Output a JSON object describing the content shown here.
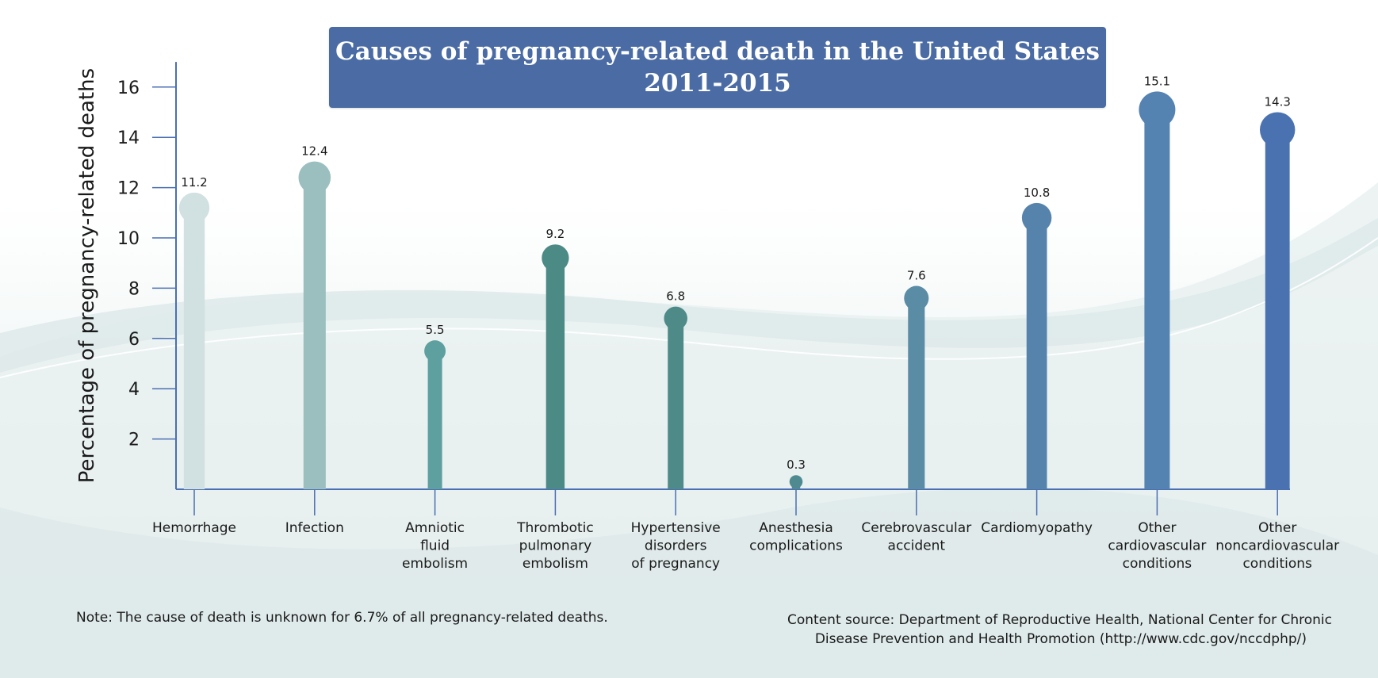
{
  "chart_data": {
    "type": "bar",
    "title": "Causes of pregnancy-related death in the United States",
    "subtitle": "2011-2015",
    "xlabel": "",
    "ylabel": "Percentage of pregnancy-related deaths",
    "ylim": [
      0,
      17
    ],
    "yticks": [
      2,
      4,
      6,
      8,
      10,
      12,
      14,
      16
    ],
    "grid": false,
    "categories": [
      [
        "Hemorrhage"
      ],
      [
        "Infection"
      ],
      [
        "Amniotic",
        "fluid",
        "embolism"
      ],
      [
        "Thrombotic",
        "pulmonary",
        "embolism"
      ],
      [
        "Hypertensive",
        "disorders",
        "of pregnancy"
      ],
      [
        "Anesthesia",
        "complications"
      ],
      [
        "Cerebrovascular",
        "accident"
      ],
      [
        "Cardiomyopathy"
      ],
      [
        "Other",
        "cardiovascular",
        "conditions"
      ],
      [
        "Other",
        "noncardiovascular",
        "conditions"
      ]
    ],
    "values": [
      11.2,
      12.4,
      5.5,
      9.2,
      6.8,
      0.3,
      7.6,
      10.8,
      15.1,
      14.3
    ],
    "value_labels": [
      "11.2",
      "12.4",
      "5.5",
      "9.2",
      "6.8",
      "0.3",
      "7.6",
      "10.8",
      "15.1",
      "14.3"
    ],
    "colors": [
      "#d1e0e0",
      "#9bbfbf",
      "#5e9fa0",
      "#4c8a86",
      "#4d8a88",
      "#4f8a91",
      "#5a8ca5",
      "#5583ab",
      "#5483b2",
      "#4b72b0"
    ]
  },
  "footer": {
    "note": "Note:  The cause of death is unknown for 6.7% of all pregnancy-related deaths.",
    "source_line1": "Content source: Department of Reproductive Health, National Center for Chronic",
    "source_line2": "Disease Prevention and Health Promotion (http://www.cdc.gov/nccdphp/)"
  }
}
